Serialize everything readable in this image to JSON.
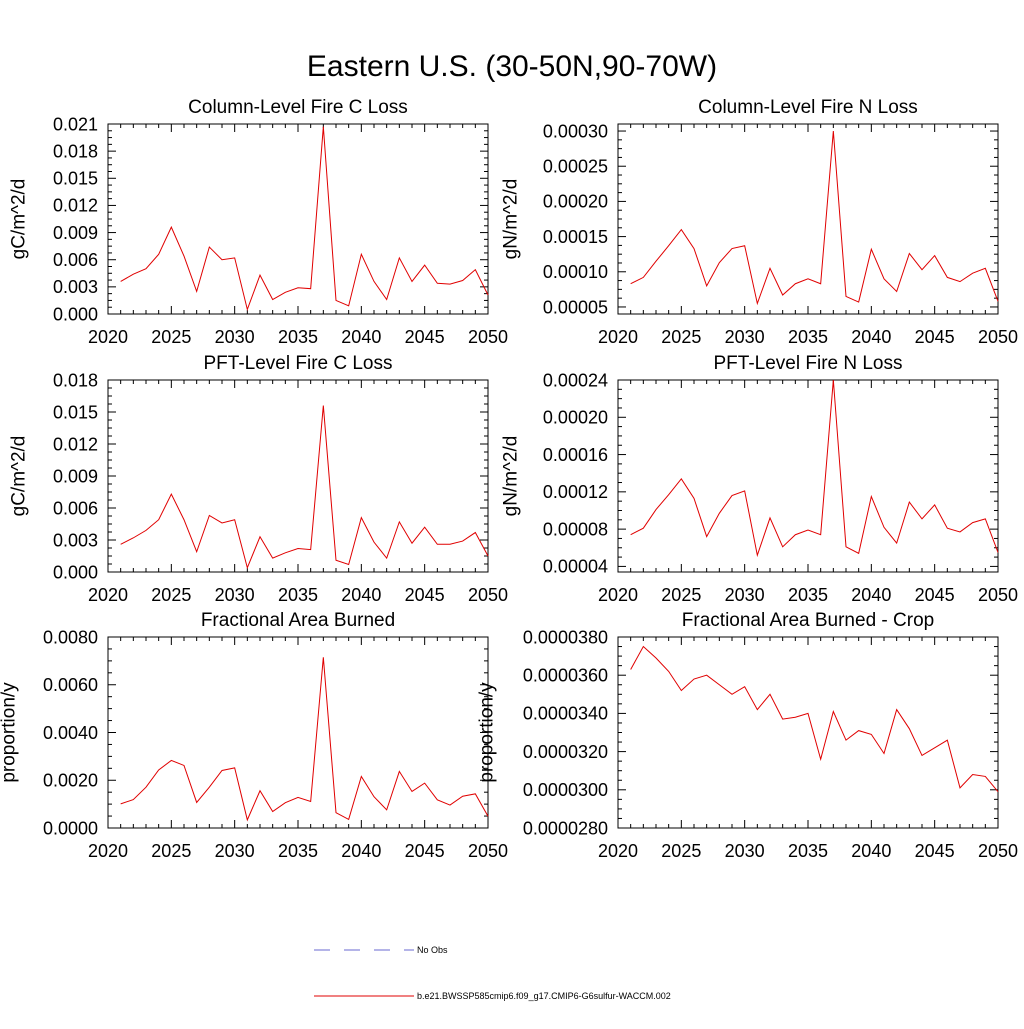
{
  "figure_title": "Eastern U.S. (30-50N,90-70W)",
  "legend": [
    {
      "label": "No Obs",
      "color": "#6a6ad0",
      "dash": "dashed"
    },
    {
      "label": "b.e21.BWSSP585cmip6.f09_g17.CMIP6-G6sulfur-WACCM.002",
      "color": "#e00000",
      "dash": "solid"
    }
  ],
  "colors": {
    "series": "#e00000",
    "axes": "#000000"
  },
  "chart_data": [
    {
      "type": "line",
      "title": "Column-Level Fire C Loss",
      "ylabel": "gC/m^2/d",
      "xlim": [
        2020,
        2050
      ],
      "ylim": [
        0,
        0.021
      ],
      "xticks": [
        "2020",
        "2025",
        "2030",
        "2035",
        "2040",
        "2045",
        "2050"
      ],
      "yticks": [
        "0.000",
        "0.003",
        "0.006",
        "0.009",
        "0.012",
        "0.015",
        "0.018",
        "0.021"
      ],
      "x": [
        2021,
        2022,
        2023,
        2024,
        2025,
        2026,
        2027,
        2028,
        2029,
        2030,
        2031,
        2032,
        2033,
        2034,
        2035,
        2036,
        2037,
        2038,
        2039,
        2040,
        2041,
        2042,
        2043,
        2044,
        2045,
        2046,
        2047,
        2048,
        2049,
        2050
      ],
      "series": [
        {
          "values": [
            0.0036,
            0.0044,
            0.005,
            0.0066,
            0.0096,
            0.0064,
            0.0025,
            0.0074,
            0.006,
            0.0062,
            0.0005,
            0.0043,
            0.0016,
            0.0024,
            0.0029,
            0.0028,
            0.0207,
            0.0015,
            0.0009,
            0.0066,
            0.0036,
            0.0016,
            0.0062,
            0.0036,
            0.0054,
            0.0034,
            0.0033,
            0.0037,
            0.0049,
            0.0021
          ]
        }
      ]
    },
    {
      "type": "line",
      "title": "Column-Level Fire N Loss",
      "ylabel": "gN/m^2/d",
      "xlim": [
        2020,
        2050
      ],
      "ylim": [
        4e-05,
        0.00031
      ],
      "xticks": [
        "2020",
        "2025",
        "2030",
        "2035",
        "2040",
        "2045",
        "2050"
      ],
      "yticks": [
        "0.00005",
        "0.00010",
        "0.00015",
        "0.00020",
        "0.00025",
        "0.00030"
      ],
      "x": [
        2021,
        2022,
        2023,
        2024,
        2025,
        2026,
        2027,
        2028,
        2029,
        2030,
        2031,
        2032,
        2033,
        2034,
        2035,
        2036,
        2037,
        2038,
        2039,
        2040,
        2041,
        2042,
        2043,
        2044,
        2045,
        2046,
        2047,
        2048,
        2049,
        2050
      ],
      "series": [
        {
          "values": [
            8.3e-05,
            9.2e-05,
            0.000115,
            0.000137,
            0.00016,
            0.000133,
            8e-05,
            0.000113,
            0.000133,
            0.000137,
            5.5e-05,
            0.000105,
            6.7e-05,
            8.3e-05,
            9e-05,
            8.3e-05,
            0.0003,
            6.5e-05,
            5.7e-05,
            0.000132,
            9e-05,
            7.2e-05,
            0.000126,
            0.000103,
            0.000123,
            9.2e-05,
            8.6e-05,
            9.8e-05,
            0.000105,
            5.8e-05
          ]
        }
      ]
    },
    {
      "type": "line",
      "title": "PFT-Level Fire C Loss",
      "ylabel": "gC/m^2/d",
      "xlim": [
        2020,
        2050
      ],
      "ylim": [
        0,
        0.018
      ],
      "xticks": [
        "2020",
        "2025",
        "2030",
        "2035",
        "2040",
        "2045",
        "2050"
      ],
      "yticks": [
        "0.000",
        "0.003",
        "0.006",
        "0.009",
        "0.012",
        "0.015",
        "0.018"
      ],
      "x": [
        2021,
        2022,
        2023,
        2024,
        2025,
        2026,
        2027,
        2028,
        2029,
        2030,
        2031,
        2032,
        2033,
        2034,
        2035,
        2036,
        2037,
        2038,
        2039,
        2040,
        2041,
        2042,
        2043,
        2044,
        2045,
        2046,
        2047,
        2048,
        2049,
        2050
      ],
      "series": [
        {
          "values": [
            0.0026,
            0.0032,
            0.0039,
            0.0049,
            0.0073,
            0.0049,
            0.0019,
            0.0053,
            0.0046,
            0.0049,
            0.0004,
            0.0033,
            0.0013,
            0.0018,
            0.0022,
            0.0021,
            0.0156,
            0.0011,
            0.0007,
            0.0051,
            0.0028,
            0.0013,
            0.0047,
            0.0027,
            0.0042,
            0.0026,
            0.0026,
            0.0029,
            0.0037,
            0.0015
          ]
        }
      ]
    },
    {
      "type": "line",
      "title": "PFT-Level Fire N Loss",
      "ylabel": "gN/m^2/d",
      "xlim": [
        2020,
        2050
      ],
      "ylim": [
        3.4e-05,
        0.00024
      ],
      "xticks": [
        "2020",
        "2025",
        "2030",
        "2035",
        "2040",
        "2045",
        "2050"
      ],
      "yticks": [
        "0.00004",
        "0.00008",
        "0.00012",
        "0.00016",
        "0.00020",
        "0.00024"
      ],
      "x": [
        2021,
        2022,
        2023,
        2024,
        2025,
        2026,
        2027,
        2028,
        2029,
        2030,
        2031,
        2032,
        2033,
        2034,
        2035,
        2036,
        2037,
        2038,
        2039,
        2040,
        2041,
        2042,
        2043,
        2044,
        2045,
        2046,
        2047,
        2048,
        2049,
        2050
      ],
      "series": [
        {
          "values": [
            7.4e-05,
            8.1e-05,
            0.000101,
            0.000117,
            0.000134,
            0.000113,
            7.2e-05,
            9.7e-05,
            0.000116,
            0.000121,
            5.2e-05,
            9.2e-05,
            6.1e-05,
            7.4e-05,
            7.9e-05,
            7.4e-05,
            0.00024,
            6.1e-05,
            5.4e-05,
            0.000115,
            8.2e-05,
            6.5e-05,
            0.000109,
            9.1e-05,
            0.000106,
            8.1e-05,
            7.7e-05,
            8.7e-05,
            9.1e-05,
            5.5e-05
          ]
        }
      ]
    },
    {
      "type": "line",
      "title": "Fractional Area Burned",
      "ylabel": "proportion/y",
      "xlim": [
        2020,
        2050
      ],
      "ylim": [
        0,
        0.008
      ],
      "xticks": [
        "2020",
        "2025",
        "2030",
        "2035",
        "2040",
        "2045",
        "2050"
      ],
      "yticks": [
        "0.0000",
        "0.0020",
        "0.0040",
        "0.0060",
        "0.0080"
      ],
      "x": [
        2021,
        2022,
        2023,
        2024,
        2025,
        2026,
        2027,
        2028,
        2029,
        2030,
        2031,
        2032,
        2033,
        2034,
        2035,
        2036,
        2037,
        2038,
        2039,
        2040,
        2041,
        2042,
        2043,
        2044,
        2045,
        2046,
        2047,
        2048,
        2049,
        2050
      ],
      "series": [
        {
          "values": [
            0.00101,
            0.00119,
            0.00171,
            0.00243,
            0.00283,
            0.00262,
            0.00107,
            0.00171,
            0.00241,
            0.00252,
            0.00034,
            0.00156,
            0.00069,
            0.00106,
            0.00128,
            0.00111,
            0.00715,
            0.00064,
            0.00036,
            0.00216,
            0.00131,
            0.00076,
            0.00237,
            0.00153,
            0.00188,
            0.00118,
            0.00096,
            0.00133,
            0.00143,
            0.00049
          ]
        }
      ]
    },
    {
      "type": "line",
      "title": "Fractional Area Burned - Crop",
      "ylabel": "proportion/y",
      "xlim": [
        2020,
        2050
      ],
      "ylim": [
        2.8e-05,
        3.8e-05
      ],
      "xticks": [
        "2020",
        "2025",
        "2030",
        "2035",
        "2040",
        "2045",
        "2050"
      ],
      "yticks": [
        "0.0000280",
        "0.0000300",
        "0.0000320",
        "0.0000340",
        "0.0000360",
        "0.0000380"
      ],
      "x": [
        2021,
        2022,
        2023,
        2024,
        2025,
        2026,
        2027,
        2028,
        2029,
        2030,
        2031,
        2032,
        2033,
        2034,
        2035,
        2036,
        2037,
        2038,
        2039,
        2040,
        2041,
        2042,
        2043,
        2044,
        2045,
        2046,
        2047,
        2048,
        2049,
        2050
      ],
      "series": [
        {
          "values": [
            3.63e-05,
            3.75e-05,
            3.69e-05,
            3.62e-05,
            3.52e-05,
            3.58e-05,
            3.6e-05,
            3.55e-05,
            3.5e-05,
            3.54e-05,
            3.42e-05,
            3.5e-05,
            3.37e-05,
            3.38e-05,
            3.4e-05,
            3.16e-05,
            3.41e-05,
            3.26e-05,
            3.31e-05,
            3.29e-05,
            3.19e-05,
            3.42e-05,
            3.32e-05,
            3.18e-05,
            3.22e-05,
            3.26e-05,
            3.01e-05,
            3.08e-05,
            3.07e-05,
            2.99e-05
          ]
        }
      ]
    }
  ]
}
